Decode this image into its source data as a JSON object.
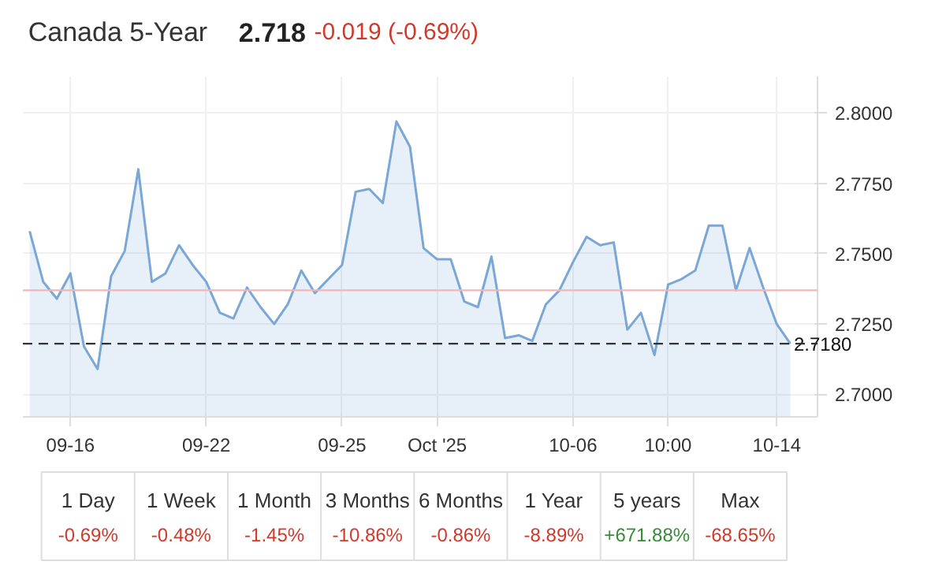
{
  "chart_data": [
    {
      "type": "area",
      "title": "Canada 5-Year",
      "annotations": [
        "2.718",
        "-0.019 (-0.69%)"
      ],
      "categories": [
        null,
        null,
        null,
        "09-16",
        null,
        null,
        null,
        null,
        null,
        null,
        null,
        null,
        null,
        "09-22",
        null,
        null,
        null,
        null,
        null,
        null,
        null,
        null,
        null,
        "09-25",
        null,
        null,
        null,
        null,
        null,
        null,
        "Oct '25",
        null,
        null,
        null,
        null,
        null,
        null,
        null,
        null,
        null,
        "10-06",
        null,
        null,
        null,
        null,
        null,
        null,
        "10:00",
        null,
        null,
        null,
        null,
        null,
        null,
        null,
        "10-14",
        null
      ],
      "series": [
        {
          "color": "#7ba7d6",
          "values": [
            2.758,
            2.74,
            2.734,
            2.743,
            2.717,
            2.709,
            2.742,
            2.751,
            2.78,
            2.74,
            2.743,
            2.753,
            2.746,
            2.74,
            2.729,
            2.727,
            2.738,
            2.731,
            2.725,
            2.732,
            2.744,
            2.736,
            2.741,
            2.746,
            2.772,
            2.773,
            2.768,
            2.797,
            2.788,
            2.752,
            2.748,
            2.748,
            2.733,
            2.731,
            2.749,
            2.72,
            2.721,
            2.719,
            2.732,
            2.737,
            2.747,
            2.756,
            2.753,
            2.754,
            2.723,
            2.729,
            2.714,
            2.739,
            2.741,
            2.744,
            2.76,
            2.76,
            2.737,
            2.752,
            2.738,
            2.725,
            2.718
          ]
        }
      ],
      "ylim": [
        2.692,
        2.813
      ],
      "yticks": [
        {
          "value": 2.7,
          "label": "2.7000"
        },
        {
          "value": 2.725,
          "label": "2.7250"
        },
        {
          "value": 2.75,
          "label": "2.7500"
        },
        {
          "value": 2.775,
          "label": "2.7750"
        },
        {
          "value": 2.8,
          "label": "2.8000"
        }
      ],
      "ref_lines": [
        {
          "axis": "y",
          "value": 2.737,
          "color": "#f5b5b5"
        },
        {
          "axis": "y",
          "value": 2.718,
          "label": "2.7180",
          "line_style": "dashed",
          "color": "#333333"
        }
      ],
      "grid": true
    },
    {
      "type": "other",
      "categories": [
        "1 Day",
        "1 Week",
        "1 Month",
        "3 Months",
        "6 Months",
        "1 Year",
        "5 years",
        "Max"
      ],
      "value_labels": [
        "-0.69%",
        "-0.48%",
        "-1.45%",
        "-10.86%",
        "-0.86%",
        "-8.89%",
        "+671.88%",
        "-68.65%"
      ],
      "colors": [
        "#d0392b",
        "#d0392b",
        "#d0392b",
        "#d0392b",
        "#d0392b",
        "#d0392b",
        "#3a8a3a",
        "#d0392b"
      ]
    }
  ]
}
